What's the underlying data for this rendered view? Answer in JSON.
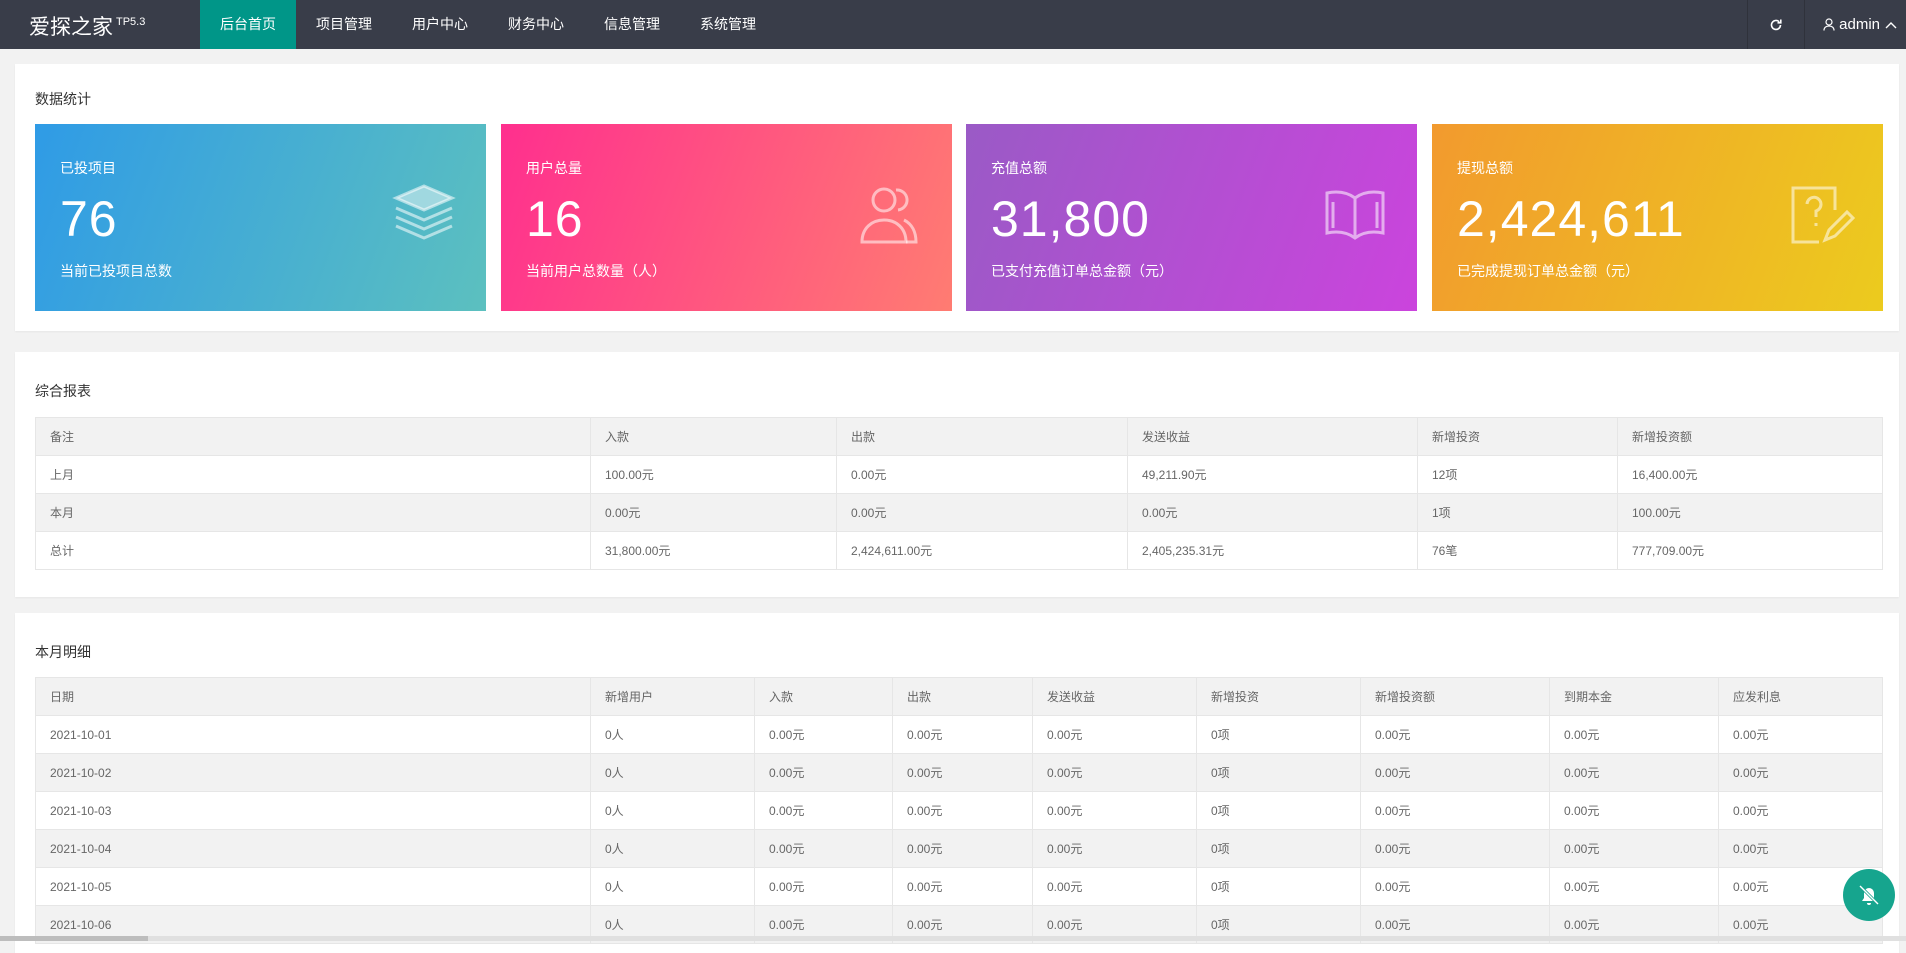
{
  "header": {
    "logo": "爱探之家",
    "version": "TP5.3",
    "nav": [
      "后台首页",
      "项目管理",
      "用户中心",
      "财务中心",
      "信息管理",
      "系统管理"
    ],
    "user": "admin"
  },
  "stats": {
    "title": "数据统计",
    "cards": [
      {
        "label": "已投项目",
        "value": "76",
        "desc": "当前已投项目总数"
      },
      {
        "label": "用户总量",
        "value": "16",
        "desc": "当前用户总数量（人）"
      },
      {
        "label": "充值总额",
        "value": "31,800",
        "desc": "已支付充值订单总金额（元）"
      },
      {
        "label": "提现总额",
        "value": "2,424,611",
        "desc": "已完成提现订单总金额（元）"
      }
    ]
  },
  "report": {
    "title": "综合报表",
    "columns": [
      "备注",
      "入款",
      "出款",
      "发送收益",
      "新增投资",
      "新增投资额"
    ],
    "rows": [
      [
        "上月",
        "100.00元",
        "0.00元",
        "49,211.90元",
        "12项",
        "16,400.00元"
      ],
      [
        "本月",
        "0.00元",
        "0.00元",
        "0.00元",
        "1项",
        "100.00元"
      ],
      [
        "总计",
        "31,800.00元",
        "2,424,611.00元",
        "2,405,235.31元",
        "76笔",
        "777,709.00元"
      ]
    ]
  },
  "monthly": {
    "title": "本月明细",
    "columns": [
      "日期",
      "新增用户",
      "入款",
      "出款",
      "发送收益",
      "新增投资",
      "新增投资额",
      "到期本金",
      "应发利息"
    ],
    "rows": [
      [
        "2021-10-01",
        "0人",
        "0.00元",
        "0.00元",
        "0.00元",
        "0项",
        "0.00元",
        "0.00元",
        "0.00元"
      ],
      [
        "2021-10-02",
        "0人",
        "0.00元",
        "0.00元",
        "0.00元",
        "0项",
        "0.00元",
        "0.00元",
        "0.00元"
      ],
      [
        "2021-10-03",
        "0人",
        "0.00元",
        "0.00元",
        "0.00元",
        "0项",
        "0.00元",
        "0.00元",
        "0.00元"
      ],
      [
        "2021-10-04",
        "0人",
        "0.00元",
        "0.00元",
        "0.00元",
        "0项",
        "0.00元",
        "0.00元",
        "0.00元"
      ],
      [
        "2021-10-05",
        "0人",
        "0.00元",
        "0.00元",
        "0.00元",
        "0项",
        "0.00元",
        "0.00元",
        "0.00元"
      ],
      [
        "2021-10-06",
        "0人",
        "0.00元",
        "0.00元",
        "0.00元",
        "0项",
        "0.00元",
        "0.00元",
        "0.00元"
      ]
    ]
  }
}
